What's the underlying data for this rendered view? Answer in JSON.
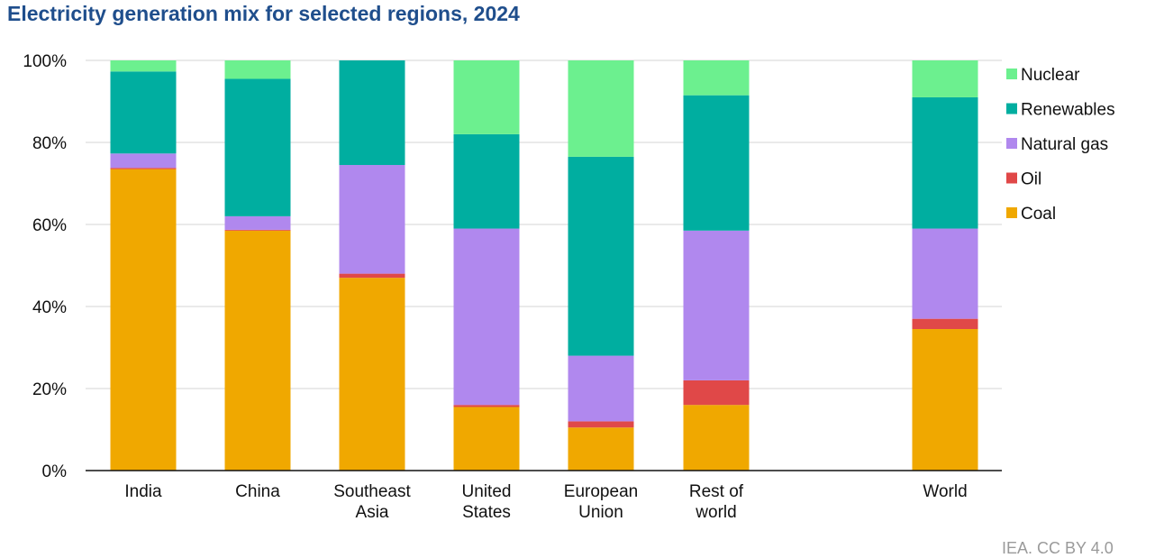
{
  "source_text": "IEA. CC BY 4.0",
  "chart_data": {
    "type": "bar",
    "stacked": true,
    "title": "Electricity generation mix for selected regions, 2024",
    "xlabel": "",
    "ylabel": "",
    "ylim": [
      0,
      100
    ],
    "yticks": [
      "0%",
      "20%",
      "40%",
      "60%",
      "80%",
      "100%"
    ],
    "grid": true,
    "legend_position": "right",
    "categories": [
      [
        "India"
      ],
      [
        "China"
      ],
      [
        "Southeast",
        "Asia"
      ],
      [
        "United",
        "States"
      ],
      [
        "European",
        "Union"
      ],
      [
        "Rest of",
        "world"
      ],
      [
        "World"
      ]
    ],
    "series": [
      {
        "name": "Coal",
        "color": "#f0a800",
        "values": [
          73.5,
          58.5,
          47,
          15.5,
          10.5,
          16,
          34.5
        ]
      },
      {
        "name": "Oil",
        "color": "#e04848",
        "values": [
          0.3,
          0.2,
          1,
          0.5,
          1.5,
          6,
          2.5
        ]
      },
      {
        "name": "Natural gas",
        "color": "#b088ee",
        "values": [
          3.5,
          3.3,
          26.5,
          43,
          16,
          36.5,
          22
        ]
      },
      {
        "name": "Renewables",
        "color": "#00aea0",
        "values": [
          20,
          33.5,
          25.5,
          23,
          48.5,
          33,
          32
        ]
      },
      {
        "name": "Nuclear",
        "color": "#6cf08f",
        "values": [
          2.7,
          4.5,
          0,
          18,
          23.5,
          8.5,
          9
        ]
      }
    ],
    "legend_order": [
      "Nuclear",
      "Renewables",
      "Natural gas",
      "Oil",
      "Coal"
    ]
  }
}
